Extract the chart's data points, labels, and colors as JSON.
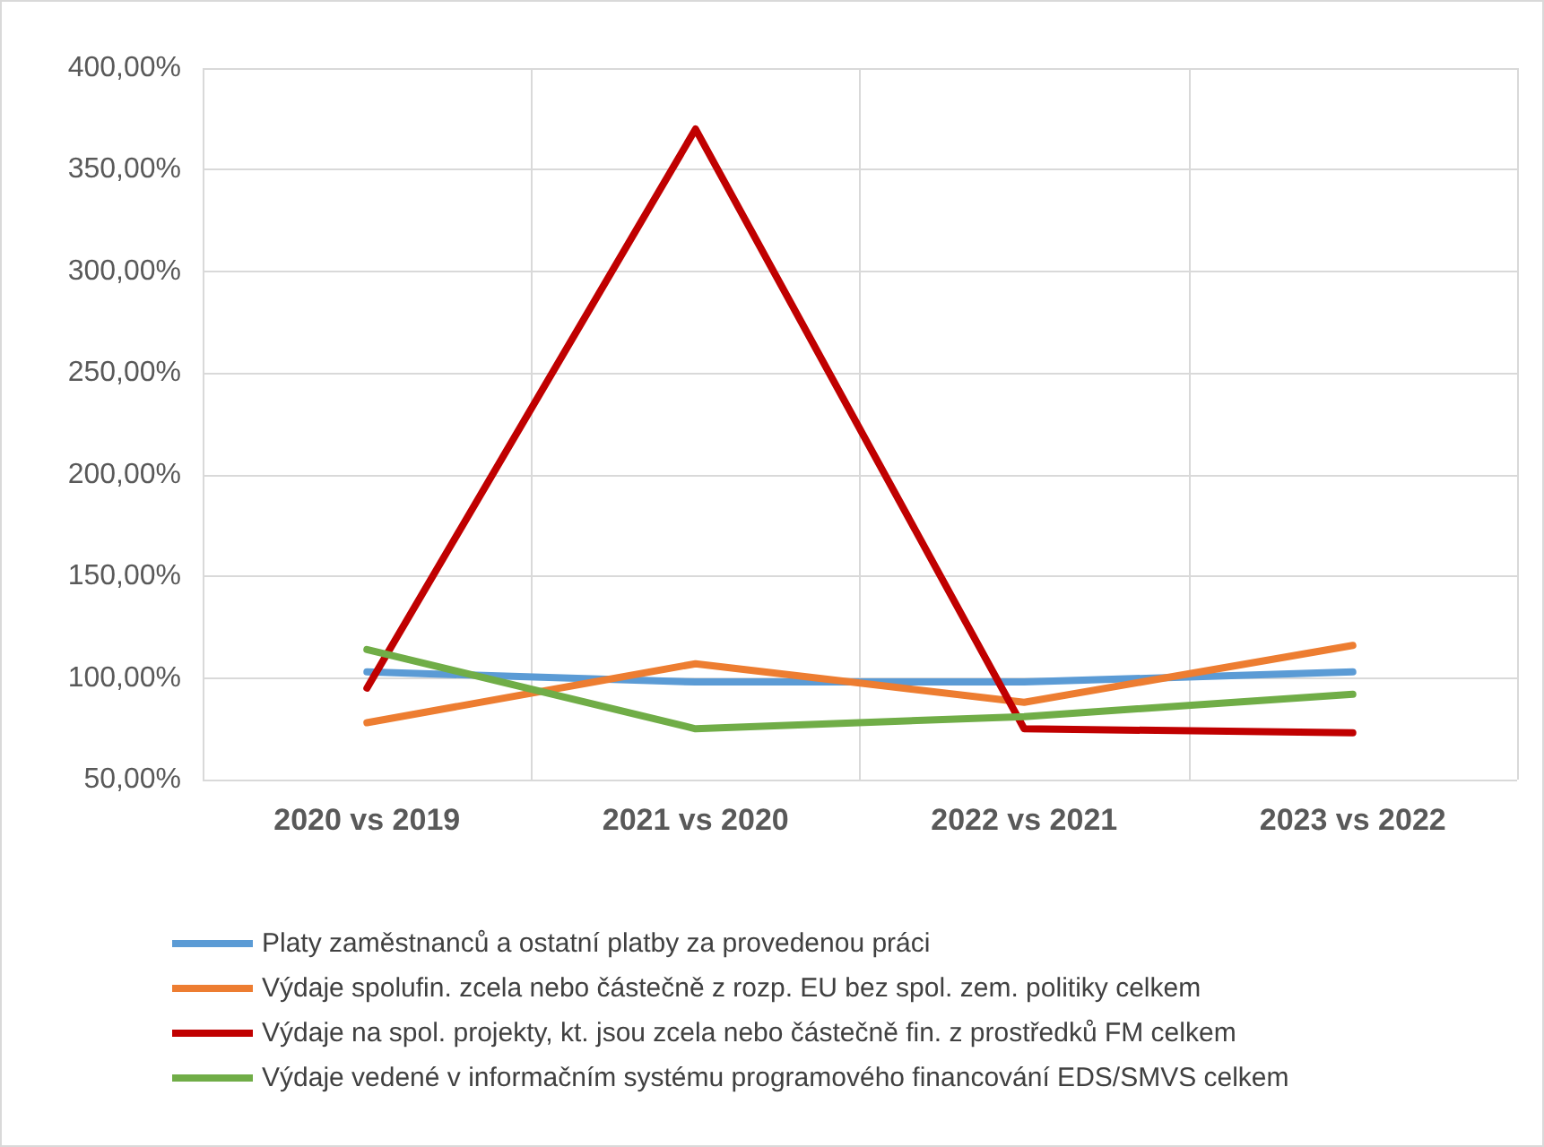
{
  "chart_data": {
    "type": "line",
    "categories": [
      "2020 vs 2019",
      "2021 vs 2020",
      "2022 vs 2021",
      "2023 vs 2022"
    ],
    "series": [
      {
        "name": "Platy zaměstnanců a ostatní platby za provedenou práci",
        "color": "#5b9bd5",
        "values": [
          103,
          98,
          98,
          103
        ]
      },
      {
        "name": "Výdaje spolufin. zcela nebo částečně z rozp. EU bez spol. zem. politiky celkem",
        "color": "#ed7d31",
        "values": [
          78,
          107,
          88,
          116
        ]
      },
      {
        "name": "Výdaje na spol. projekty, kt. jsou zcela nebo částečně fin. z prostředků FM celkem",
        "color": "#c00000",
        "values": [
          95,
          370,
          75,
          73
        ]
      },
      {
        "name": "Výdaje vedené v informačním systému programového financování EDS/SMVS celkem",
        "color": "#70ad47",
        "values": [
          114,
          75,
          81,
          92
        ]
      }
    ],
    "ylim": [
      50,
      400
    ],
    "yticks": [
      {
        "value": 50,
        "label": "50,00%"
      },
      {
        "value": 100,
        "label": "100,00%"
      },
      {
        "value": 150,
        "label": "150,00%"
      },
      {
        "value": 200,
        "label": "200,00%"
      },
      {
        "value": 250,
        "label": "250,00%"
      },
      {
        "value": 300,
        "label": "300,00%"
      },
      {
        "value": 350,
        "label": "350,00%"
      },
      {
        "value": 400,
        "label": "400,00%"
      }
    ],
    "grid": true,
    "legend": "bottom",
    "marker": "none",
    "line_style": "solid"
  }
}
